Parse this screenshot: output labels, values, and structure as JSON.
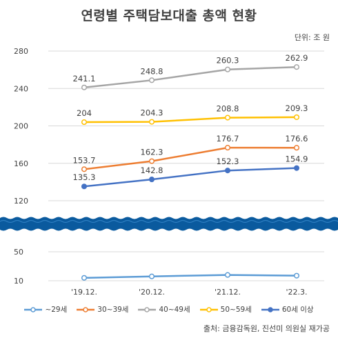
{
  "title": "연령별 주택담보대출 총액 현황",
  "unit": "단위: 조 원",
  "source": "출처: 금융감독원, 진선미 의원실 재가공",
  "chart_data": {
    "type": "line",
    "title": "연령별 주택담보대출 총액 현황",
    "x": [
      "'19.12.",
      "'20.12.",
      "'21.12.",
      "'22.3."
    ],
    "y_ticks_upper": [
      "280",
      "240",
      "200",
      "160",
      "120"
    ],
    "y_ticks_lower": [
      "50",
      "10"
    ],
    "ylim_upper": [
      120,
      280
    ],
    "ylim_lower": [
      10,
      50
    ],
    "axis_break": true,
    "grid": true,
    "legend_position": "bottom",
    "series": [
      {
        "name": "~29세",
        "color": "#5b9bd5",
        "marker": "open",
        "values": [
          14,
          16,
          18,
          17
        ],
        "labels": [
          "",
          "",
          "",
          ""
        ],
        "axis": "lower"
      },
      {
        "name": "30~39세",
        "color": "#ed7d31",
        "marker": "open",
        "values": [
          153.7,
          162.3,
          176.7,
          176.6
        ],
        "labels": [
          "153.7",
          "162.3",
          "176.7",
          "176.6"
        ],
        "axis": "upper"
      },
      {
        "name": "40~49세",
        "color": "#a5a5a5",
        "marker": "open",
        "values": [
          241.1,
          248.8,
          260.3,
          262.9
        ],
        "labels": [
          "241.1",
          "248.8",
          "260.3",
          "262.9"
        ],
        "axis": "upper"
      },
      {
        "name": "50~59세",
        "color": "#ffc000",
        "marker": "open",
        "values": [
          204,
          204.3,
          208.8,
          209.3
        ],
        "labels": [
          "204",
          "204.3",
          "208.8",
          "209.3"
        ],
        "axis": "upper"
      },
      {
        "name": "60세 이상",
        "color": "#4472c4",
        "marker": "filled",
        "values": [
          135.3,
          142.8,
          152.3,
          154.9
        ],
        "labels": [
          "135.3",
          "142.8",
          "152.3",
          "154.9"
        ],
        "axis": "upper"
      }
    ]
  }
}
